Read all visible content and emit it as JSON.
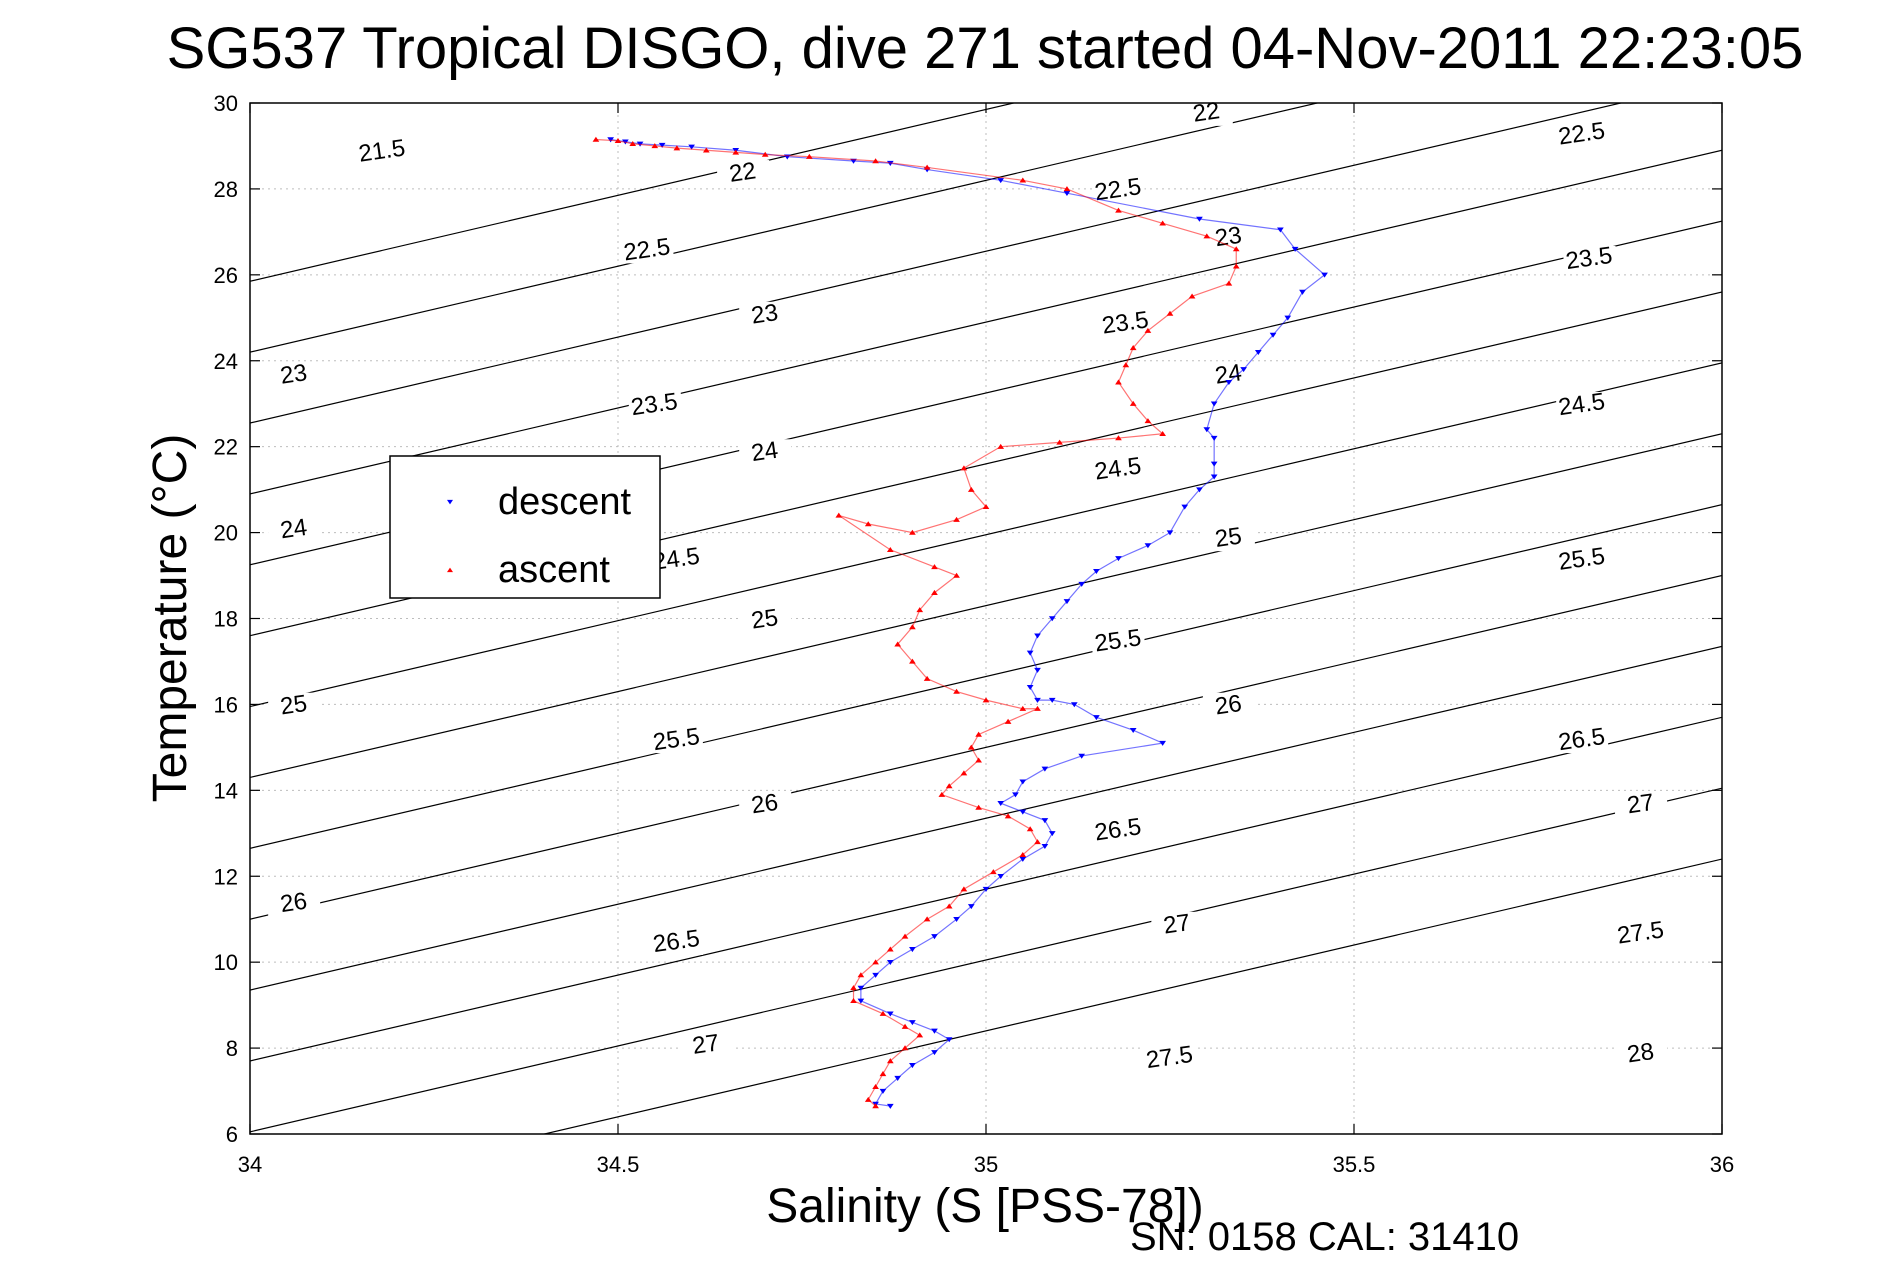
{
  "chart_data": {
    "type": "scatter",
    "title": "SG537 Tropical DISGO, dive 271 started 04-Nov-2011 22:23:05",
    "xlabel": "Salinity (S [PSS-78])",
    "ylabel": "Temperature (°C)",
    "footer": "SN: 0158  CAL: 31410",
    "xlim": [
      34,
      36
    ],
    "ylim": [
      6,
      30
    ],
    "xticks": [
      34,
      34.5,
      35,
      35.5,
      36
    ],
    "yticks": [
      6,
      8,
      10,
      12,
      14,
      16,
      18,
      20,
      22,
      24,
      26,
      28,
      30
    ],
    "grid": true,
    "legend": {
      "placement": "middle-left",
      "entries": [
        "descent",
        "ascent"
      ]
    },
    "contours": [
      {
        "label": "21.5",
        "label_pos": [
          [
            34.18,
            28.8
          ]
        ]
      },
      {
        "label": "22",
        "label_pos": [
          [
            34.67,
            28.3
          ],
          [
            35.3,
            29.7
          ]
        ]
      },
      {
        "label": "22.5",
        "label_pos": [
          [
            34.54,
            26.5
          ],
          [
            35.18,
            27.9
          ],
          [
            35.81,
            29.2
          ]
        ]
      },
      {
        "label": "23",
        "label_pos": [
          [
            34.06,
            23.6
          ],
          [
            34.7,
            25.0
          ],
          [
            35.33,
            26.8
          ]
        ]
      },
      {
        "label": "23.5",
        "label_pos": [
          [
            34.55,
            22.9
          ],
          [
            35.19,
            24.8
          ],
          [
            35.82,
            26.3
          ]
        ]
      },
      {
        "label": "24",
        "label_pos": [
          [
            34.06,
            20.0
          ],
          [
            34.7,
            21.8
          ],
          [
            35.33,
            23.6
          ]
        ]
      },
      {
        "label": "24.5",
        "label_pos": [
          [
            34.58,
            19.3
          ],
          [
            35.18,
            21.4
          ],
          [
            35.81,
            22.9
          ]
        ]
      },
      {
        "label": "25",
        "label_pos": [
          [
            34.06,
            15.9
          ],
          [
            34.7,
            17.9
          ],
          [
            35.33,
            19.8
          ]
        ]
      },
      {
        "label": "25.5",
        "label_pos": [
          [
            34.58,
            15.1
          ],
          [
            35.18,
            17.4
          ],
          [
            35.81,
            19.3
          ]
        ]
      },
      {
        "label": "26",
        "label_pos": [
          [
            34.06,
            11.3
          ],
          [
            34.7,
            13.6
          ],
          [
            35.33,
            15.9
          ]
        ]
      },
      {
        "label": "26.5",
        "label_pos": [
          [
            34.58,
            10.4
          ],
          [
            35.18,
            13.0
          ],
          [
            35.81,
            15.1
          ]
        ]
      },
      {
        "label": "27",
        "label_pos": [
          [
            34.62,
            8.0
          ],
          [
            35.26,
            10.8
          ],
          [
            35.89,
            13.6
          ]
        ]
      },
      {
        "label": "27.5",
        "label_pos": [
          [
            35.25,
            7.7
          ],
          [
            35.89,
            10.6
          ]
        ]
      },
      {
        "label": "28",
        "label_pos": [
          [
            35.89,
            7.8
          ]
        ]
      }
    ],
    "series": [
      {
        "name": "descent",
        "color": "#0000ff",
        "marker": "triangle-down",
        "points": [
          [
            34.49,
            29.15
          ],
          [
            34.51,
            29.1
          ],
          [
            34.53,
            29.05
          ],
          [
            34.56,
            29.02
          ],
          [
            34.6,
            28.98
          ],
          [
            34.66,
            28.9
          ],
          [
            34.73,
            28.75
          ],
          [
            34.82,
            28.65
          ],
          [
            34.87,
            28.6
          ],
          [
            34.92,
            28.45
          ],
          [
            35.02,
            28.2
          ],
          [
            35.11,
            27.9
          ],
          [
            35.29,
            27.3
          ],
          [
            35.4,
            27.05
          ],
          [
            35.42,
            26.6
          ],
          [
            35.46,
            26.0
          ],
          [
            35.43,
            25.6
          ],
          [
            35.41,
            25.0
          ],
          [
            35.39,
            24.6
          ],
          [
            35.37,
            24.2
          ],
          [
            35.35,
            23.8
          ],
          [
            35.33,
            23.5
          ],
          [
            35.31,
            23.0
          ],
          [
            35.3,
            22.4
          ],
          [
            35.31,
            22.2
          ],
          [
            35.31,
            21.6
          ],
          [
            35.31,
            21.3
          ],
          [
            35.29,
            21.0
          ],
          [
            35.27,
            20.6
          ],
          [
            35.25,
            20.0
          ],
          [
            35.22,
            19.7
          ],
          [
            35.18,
            19.4
          ],
          [
            35.15,
            19.1
          ],
          [
            35.13,
            18.8
          ],
          [
            35.11,
            18.4
          ],
          [
            35.09,
            18.0
          ],
          [
            35.07,
            17.6
          ],
          [
            35.06,
            17.2
          ],
          [
            35.07,
            16.8
          ],
          [
            35.06,
            16.4
          ],
          [
            35.07,
            16.1
          ],
          [
            35.09,
            16.1
          ],
          [
            35.12,
            16.0
          ],
          [
            35.15,
            15.7
          ],
          [
            35.2,
            15.4
          ],
          [
            35.24,
            15.1
          ],
          [
            35.13,
            14.8
          ],
          [
            35.08,
            14.5
          ],
          [
            35.05,
            14.2
          ],
          [
            35.04,
            13.9
          ],
          [
            35.02,
            13.7
          ],
          [
            35.05,
            13.5
          ],
          [
            35.08,
            13.3
          ],
          [
            35.09,
            13.0
          ],
          [
            35.08,
            12.7
          ],
          [
            35.05,
            12.4
          ],
          [
            35.02,
            12.0
          ],
          [
            35.0,
            11.7
          ],
          [
            34.98,
            11.3
          ],
          [
            34.96,
            11.0
          ],
          [
            34.93,
            10.6
          ],
          [
            34.9,
            10.3
          ],
          [
            34.87,
            10.0
          ],
          [
            34.85,
            9.7
          ],
          [
            34.83,
            9.4
          ],
          [
            34.83,
            9.1
          ],
          [
            34.87,
            8.8
          ],
          [
            34.9,
            8.6
          ],
          [
            34.93,
            8.4
          ],
          [
            34.95,
            8.2
          ],
          [
            34.93,
            7.9
          ],
          [
            34.9,
            7.6
          ],
          [
            34.88,
            7.3
          ],
          [
            34.86,
            7.0
          ],
          [
            34.85,
            6.7
          ],
          [
            34.87,
            6.65
          ]
        ]
      },
      {
        "name": "ascent",
        "color": "#ff0000",
        "marker": "triangle-up",
        "points": [
          [
            34.47,
            29.15
          ],
          [
            34.5,
            29.12
          ],
          [
            34.52,
            29.05
          ],
          [
            34.55,
            29.0
          ],
          [
            34.58,
            28.95
          ],
          [
            34.62,
            28.9
          ],
          [
            34.66,
            28.85
          ],
          [
            34.7,
            28.8
          ],
          [
            34.76,
            28.75
          ],
          [
            34.85,
            28.65
          ],
          [
            34.92,
            28.5
          ],
          [
            35.05,
            28.2
          ],
          [
            35.11,
            28.0
          ],
          [
            35.18,
            27.5
          ],
          [
            35.24,
            27.2
          ],
          [
            35.3,
            26.9
          ],
          [
            35.34,
            26.6
          ],
          [
            35.34,
            26.2
          ],
          [
            35.33,
            25.8
          ],
          [
            35.28,
            25.5
          ],
          [
            35.25,
            25.1
          ],
          [
            35.22,
            24.7
          ],
          [
            35.2,
            24.3
          ],
          [
            35.19,
            23.9
          ],
          [
            35.18,
            23.5
          ],
          [
            35.2,
            23.0
          ],
          [
            35.22,
            22.6
          ],
          [
            35.24,
            22.3
          ],
          [
            35.18,
            22.2
          ],
          [
            35.1,
            22.1
          ],
          [
            35.02,
            22.0
          ],
          [
            34.97,
            21.5
          ],
          [
            34.98,
            21.0
          ],
          [
            35.0,
            20.6
          ],
          [
            34.96,
            20.3
          ],
          [
            34.9,
            20.0
          ],
          [
            34.84,
            20.2
          ],
          [
            34.8,
            20.4
          ],
          [
            34.87,
            19.6
          ],
          [
            34.93,
            19.2
          ],
          [
            34.96,
            19.0
          ],
          [
            34.93,
            18.6
          ],
          [
            34.91,
            18.2
          ],
          [
            34.9,
            17.8
          ],
          [
            34.88,
            17.4
          ],
          [
            34.9,
            17.0
          ],
          [
            34.92,
            16.6
          ],
          [
            34.96,
            16.3
          ],
          [
            35.0,
            16.1
          ],
          [
            35.05,
            15.9
          ],
          [
            35.07,
            15.9
          ],
          [
            35.03,
            15.6
          ],
          [
            34.99,
            15.3
          ],
          [
            34.98,
            15.0
          ],
          [
            34.99,
            14.7
          ],
          [
            34.97,
            14.4
          ],
          [
            34.95,
            14.1
          ],
          [
            34.94,
            13.9
          ],
          [
            34.99,
            13.6
          ],
          [
            35.03,
            13.4
          ],
          [
            35.06,
            13.1
          ],
          [
            35.07,
            12.8
          ],
          [
            35.05,
            12.5
          ],
          [
            35.01,
            12.1
          ],
          [
            34.97,
            11.7
          ],
          [
            34.95,
            11.3
          ],
          [
            34.92,
            11.0
          ],
          [
            34.89,
            10.6
          ],
          [
            34.87,
            10.3
          ],
          [
            34.85,
            10.0
          ],
          [
            34.83,
            9.7
          ],
          [
            34.82,
            9.4
          ],
          [
            34.82,
            9.1
          ],
          [
            34.86,
            8.8
          ],
          [
            34.89,
            8.5
          ],
          [
            34.91,
            8.3
          ],
          [
            34.89,
            8.0
          ],
          [
            34.87,
            7.7
          ],
          [
            34.86,
            7.4
          ],
          [
            34.85,
            7.1
          ],
          [
            34.84,
            6.8
          ],
          [
            34.85,
            6.65
          ]
        ]
      }
    ]
  }
}
